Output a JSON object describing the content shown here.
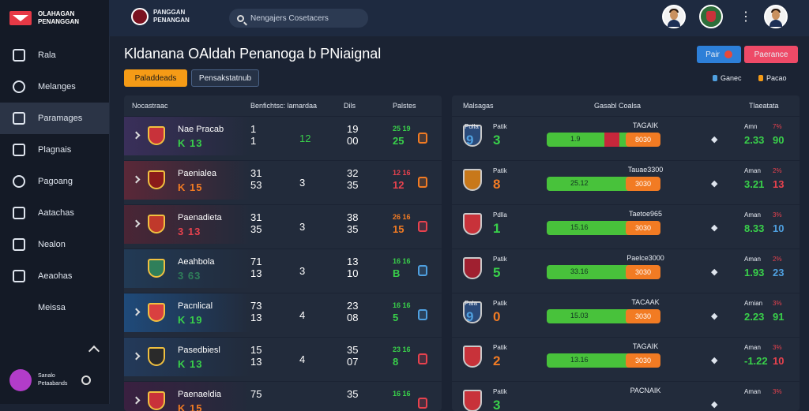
{
  "sidebar": {
    "logo_line1": "OLAHAGAN",
    "logo_line2": "PENANGGAN",
    "items": [
      {
        "label": "Rala",
        "icon": "home-icon",
        "active": false
      },
      {
        "label": "Melanges",
        "icon": "clock-icon",
        "active": false
      },
      {
        "label": "Paramages",
        "icon": "calendar-icon",
        "active": true
      },
      {
        "label": "Plagnais",
        "icon": "heart-shield-icon",
        "active": false
      },
      {
        "label": "Pagoang",
        "icon": "diamond-icon",
        "active": false
      },
      {
        "label": "Aatachas",
        "icon": "grid-icon",
        "active": false
      },
      {
        "label": "Nealon",
        "icon": "home-icon",
        "active": false
      },
      {
        "label": "Aeaohas",
        "icon": "bag-icon",
        "active": false
      },
      {
        "label": "Meissa",
        "icon": "",
        "active": false
      }
    ],
    "user_line1": "Sanalo",
    "user_line2": "Petaabands"
  },
  "topbar": {
    "brand_line1": "PANGGAN",
    "brand_line2": "PENANGAN",
    "search_placeholder": "Nengajers Cosetacers"
  },
  "header": {
    "title": "Kldanana OAldah Penanoga b PNiaignal",
    "btn_blue": "Pair",
    "btn_red": "Paerance",
    "tab_active": "Paladdeads",
    "tab_inactive": "Pensakstatnub",
    "filter1": "Ganec",
    "filter2": "Pacao",
    "accent": "#f59b16"
  },
  "left_table": {
    "headers": [
      "Nocastraac",
      "Benfichtsc: lamardaa",
      "Dils",
      "Palstes"
    ],
    "rows": [
      {
        "name": "Nae Pracab",
        "odds": "K 13",
        "odds_color": "#39d04a",
        "c1a": "1",
        "c1b": "1",
        "c2": "12",
        "c2_color": "#39d04a",
        "c3a": "19",
        "c3b": "00",
        "c4top": "25 19",
        "c4": "25",
        "c4_color": "#39d04a",
        "badge_color": "#f27b23",
        "bg": "#3a2f5a"
      },
      {
        "name": "Paenialea",
        "odds": "K 15",
        "odds_color": "#f27b23",
        "c1a": "31",
        "c1b": "53",
        "c2": "3",
        "c2_color": "#ffffff",
        "c3a": "32",
        "c3b": "35",
        "c4top": "12 16",
        "c4": "12",
        "c4_color": "#e8424e",
        "badge_color": "#f27b23",
        "bg": "#5a2838"
      },
      {
        "name": "Paenadieta",
        "odds": "3 13",
        "odds_color": "#e8424e",
        "c1a": "31",
        "c1b": "35",
        "c2": "3",
        "c2_color": "#ffffff",
        "c3a": "38",
        "c3b": "35",
        "c4top": "26 16",
        "c4": "15",
        "c4_color": "#f27b23",
        "badge_color": "#e8424e",
        "bg": "#4a2535"
      },
      {
        "name": "Aeahbola",
        "odds": "3 63",
        "odds_color": "#2f7f5a",
        "c1a": "71",
        "c1b": "13",
        "c2": "3",
        "c2_color": "#ffffff",
        "c3a": "13",
        "c3b": "10",
        "c4top": "16 16",
        "c4": "B",
        "c4_color": "#39d04a",
        "badge_color": "#4fa0e0",
        "bg": "#223a55"
      },
      {
        "name": "Pacnlical",
        "odds": "K 19",
        "odds_color": "#39d04a",
        "c1a": "73",
        "c1b": "13",
        "c2": "4",
        "c2_color": "#ffffff",
        "c3a": "23",
        "c3b": "08",
        "c4top": "16 16",
        "c4": "5",
        "c4_color": "#39d04a",
        "badge_color": "#4fa0e0",
        "bg": "#1f4a7a"
      },
      {
        "name": "Pasedbiesl",
        "odds": "K 13",
        "odds_color": "#39d04a",
        "c1a": "15",
        "c1b": "13",
        "c2": "4",
        "c2_color": "#ffffff",
        "c3a": "35",
        "c3b": "07",
        "c4top": "23 16",
        "c4": "8",
        "c4_color": "#39d04a",
        "badge_color": "#e8424e",
        "bg": "#233a5a"
      },
      {
        "name": "Paenaeldia",
        "odds": "K 15",
        "odds_color": "#f27b23",
        "c1a": "75",
        "c1b": "",
        "c2": "",
        "c2_color": "#ffffff",
        "c3a": "35",
        "c3b": "",
        "c4top": "16 16",
        "c4": "",
        "c4_color": "#39d04a",
        "badge_color": "#e8424e",
        "bg": "#3a2040"
      }
    ]
  },
  "right_table": {
    "headers": [
      "Malsagas",
      "Gasabl Coalsa",
      "Tlaeatata"
    ],
    "rows": [
      {
        "lbl_left": "Polla",
        "lbl": "Patik",
        "num_left": "9",
        "num": "3",
        "num_color": "#39d04a",
        "title": "TAGAIK",
        "bar": "1.9",
        "red_from": 0.52,
        "red_to": 0.66,
        "pill": "8030",
        "amt": "Amn",
        "pct": "7%",
        "v1": "2.33",
        "v2": "90",
        "v2_color": "#39d04a"
      },
      {
        "lbl_left": "",
        "lbl": "Patik",
        "num_left": "",
        "num": "8",
        "num_color": "#f27b23",
        "title": "Tauae3300",
        "bar": "25.12",
        "red_from": 0,
        "red_to": 0,
        "pill": "3030",
        "amt": "Aman",
        "pct": "2%",
        "v1": "3.21",
        "v2": "13",
        "v2_color": "#e8424e"
      },
      {
        "lbl_left": "",
        "lbl": "Pdlla",
        "num_left": "",
        "num": "1",
        "num_color": "#39d04a",
        "title": "Taetoe965",
        "bar": "15.16",
        "red_from": 0,
        "red_to": 0,
        "pill": "3030",
        "amt": "Aman",
        "pct": "3%",
        "v1": "8.33",
        "v2": "10",
        "v2_color": "#4fa0e0"
      },
      {
        "lbl_left": "",
        "lbl": "Patik",
        "num_left": "",
        "num": "5",
        "num_color": "#39d04a",
        "title": "Paelce3000",
        "bar": "33.16",
        "red_from": 0,
        "red_to": 0,
        "pill": "3030",
        "amt": "Aman",
        "pct": "2%",
        "v1": "1.93",
        "v2": "23",
        "v2_color": "#4fa0e0"
      },
      {
        "lbl_left": "Pala",
        "lbl": "Patik",
        "num_left": "9",
        "num": "0",
        "num_color": "#f27b23",
        "title": "TACAAK",
        "bar": "15.03",
        "red_from": 0,
        "red_to": 0,
        "pill": "3030",
        "amt": "Arnian",
        "pct": "3%",
        "v1": "2.23",
        "v2": "91",
        "v2_color": "#39d04a"
      },
      {
        "lbl_left": "",
        "lbl": "Patik",
        "num_left": "",
        "num": "2",
        "num_color": "#f27b23",
        "title": "TAGAIK",
        "bar": "13.16",
        "red_from": 0,
        "red_to": 0,
        "pill": "3030",
        "amt": "Aman",
        "pct": "3%",
        "v1": "-1.22",
        "v2": "10",
        "v2_color": "#e8424e"
      },
      {
        "lbl_left": "",
        "lbl": "Patik",
        "num_left": "",
        "num": "3",
        "num_color": "#39d04a",
        "title": "PACNAIK",
        "bar": "",
        "red_from": 0,
        "red_to": 0,
        "pill": "",
        "amt": "Aman",
        "pct": "3%",
        "v1": "",
        "v2": "",
        "v2_color": "#39d04a"
      }
    ]
  }
}
